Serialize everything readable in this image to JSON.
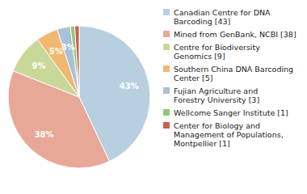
{
  "chart_data": {
    "type": "pie",
    "categories": [
      "Canadian Centre for DNA\nBarcoding [43]",
      "Mined from GenBank, NCBI [38]",
      "Centre for Biodiversity\nGenomics [9]",
      "Southern China DNA Barcoding\nCenter [5]",
      "Fujian Agriculture and\nForestry University [3]",
      "Wellcome Sanger Institute [1]",
      "Center for Biology and\nManagement of Populations,\nMontpellier [1]"
    ],
    "values": [
      43,
      38,
      9,
      5,
      3,
      1,
      1
    ],
    "value_labels": [
      "43%",
      "38%",
      "9%",
      "5%",
      "3%",
      null,
      null
    ],
    "data_labels": true,
    "colors": [
      "#b8cfe0",
      "#e8a898",
      "#c8d898",
      "#f0b870",
      "#a8c0d8",
      "#90c878",
      "#c86050"
    ],
    "legend": "right"
  }
}
